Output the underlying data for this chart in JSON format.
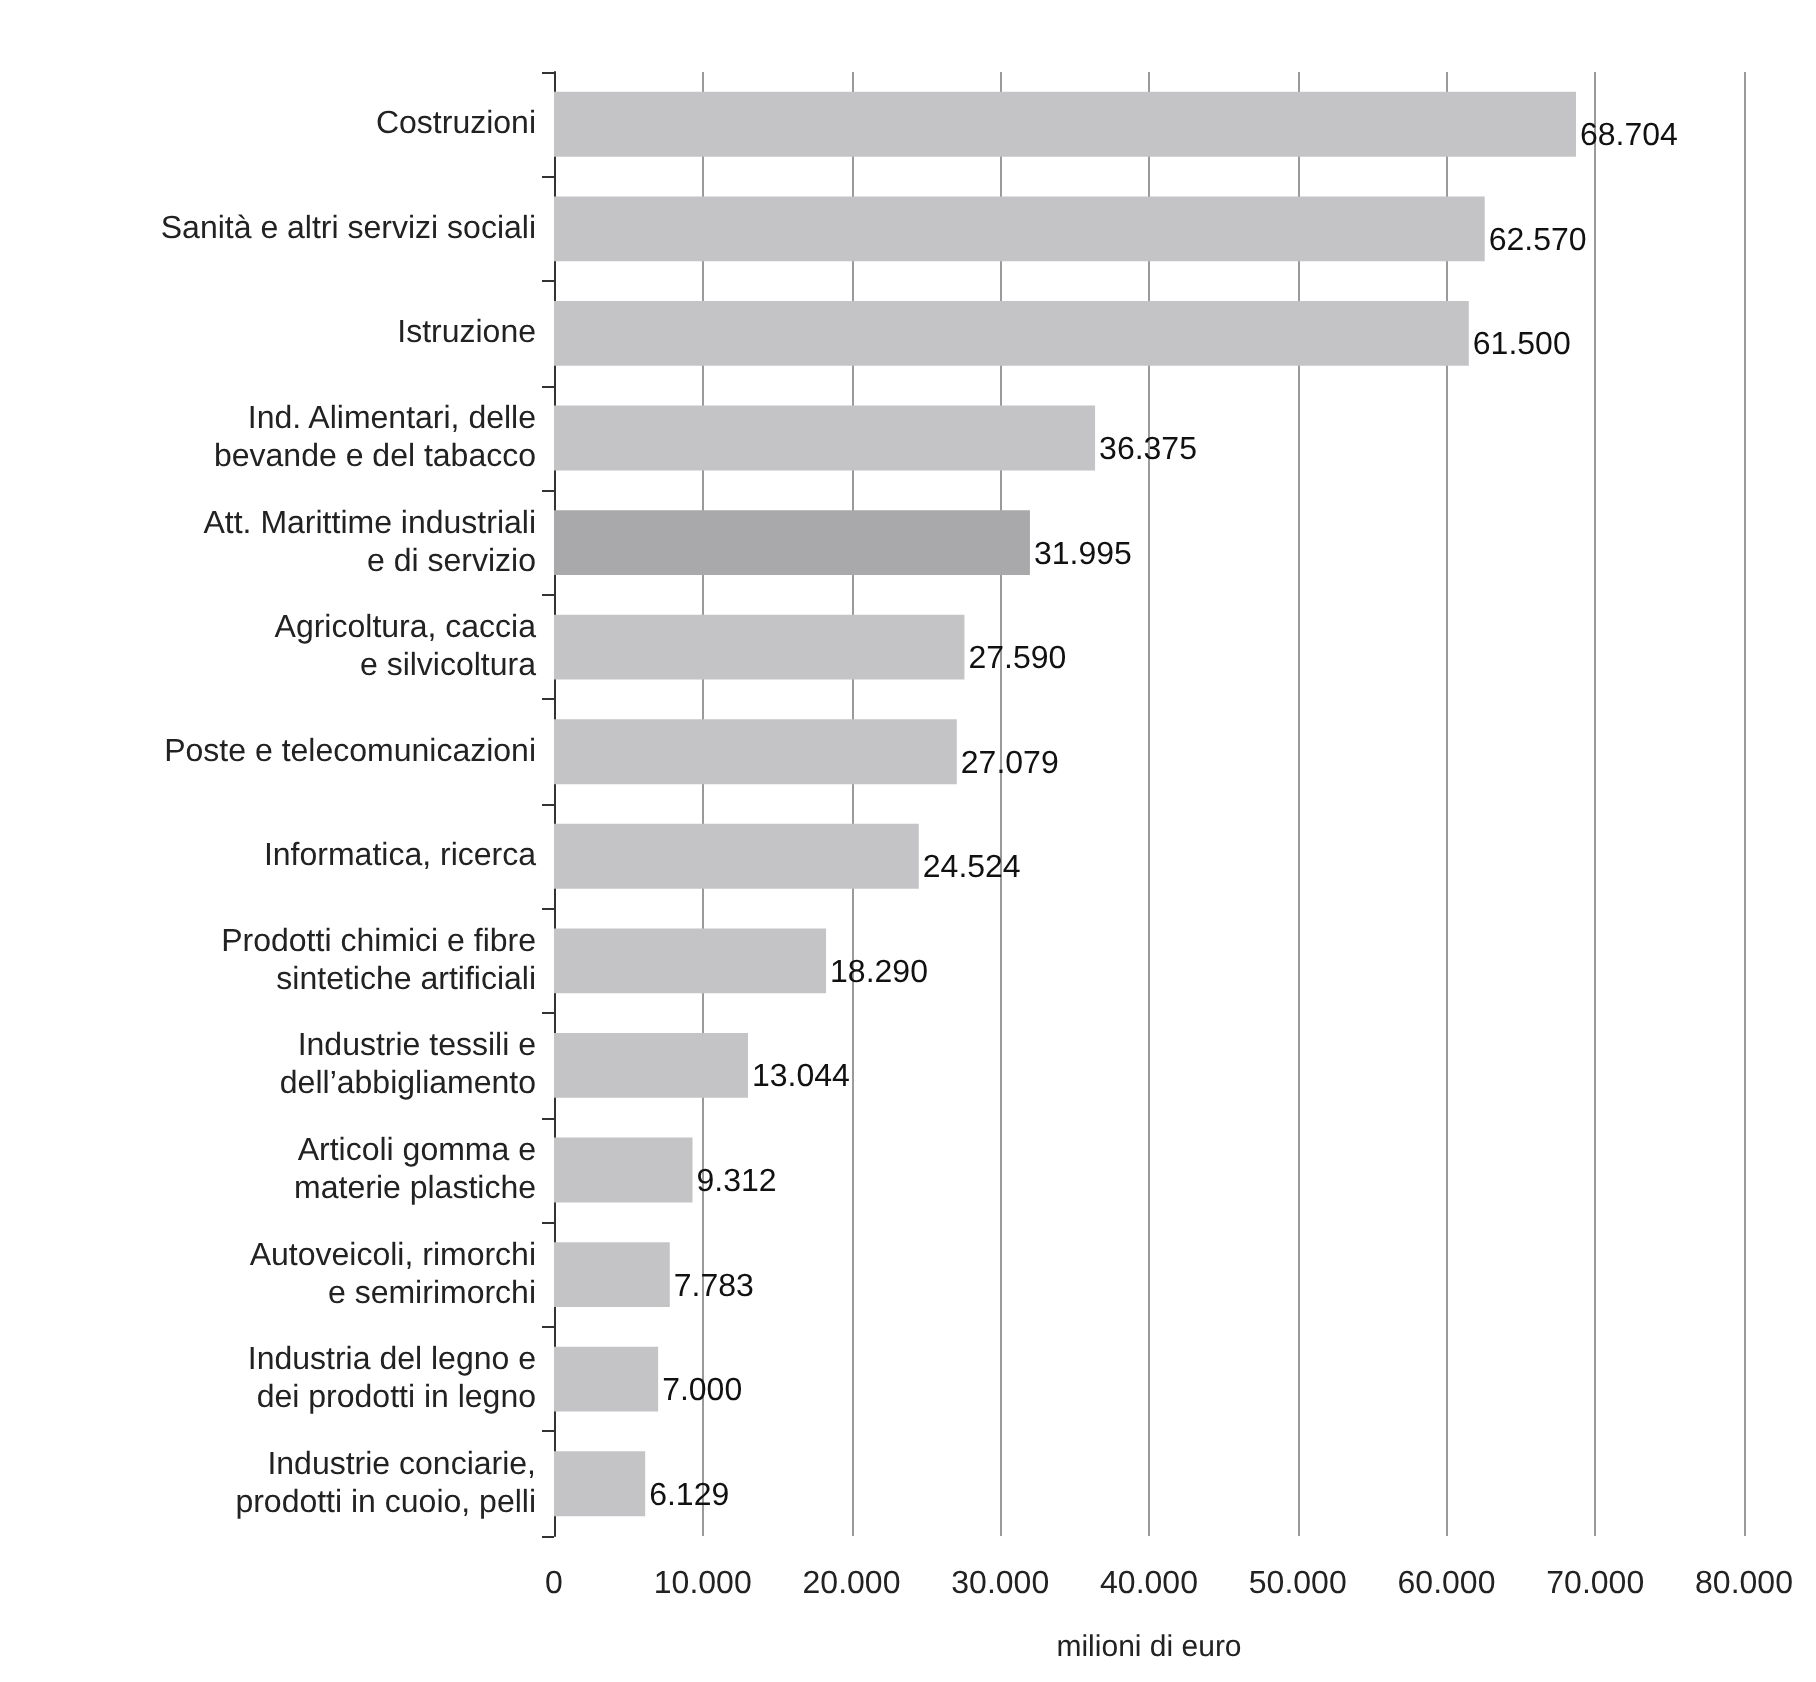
{
  "chart_data": {
    "type": "bar",
    "orientation": "horizontal",
    "xlabel": "milioni di euro",
    "categories": [
      "Costruzioni",
      "Sanità e altri servizi sociali",
      "Istruzione",
      "Ind. Alimentari, delle\nbevande e del tabacco",
      "Att. Marittime industriali\ne di servizio",
      "Agricoltura, caccia\ne silvicoltura",
      "Poste e telecomunicazioni",
      "Informatica, ricerca",
      "Prodotti chimici e fibre\nsintetiche artificiali",
      "Industrie tessili e\ndell’abbigliamento",
      "Articoli gomma e\nmaterie plastiche",
      "Autoveicoli, rimorchi\ne semirimorchi",
      "Industria del legno e\ndei prodotti in legno",
      "Industrie conciarie,\nprodotti in cuoio, pelli"
    ],
    "values": [
      68704,
      62570,
      61500,
      36375,
      31995,
      27590,
      27079,
      24524,
      18290,
      13044,
      9312,
      7783,
      7000,
      6129
    ],
    "value_labels": [
      "68.704",
      "62.570",
      "61.500",
      "36.375",
      "31.995",
      "27.590",
      "27.079",
      "24.524",
      "18.290",
      "13.044",
      "9.312",
      "7.783",
      "7.000",
      "6.129"
    ],
    "colors": [
      "#c4c4c7",
      "#c4c4c7",
      "#c4c4c7",
      "#c4c4c7",
      "#a9a9ac",
      "#c4c4c7",
      "#c4c4c7",
      "#c4c4c7",
      "#c4c4c7",
      "#c4c4c7",
      "#c4c4c7",
      "#c4c4c7",
      "#c4c4c7",
      "#c4c4c7"
    ],
    "xlim": [
      0,
      80000
    ],
    "xticks": [
      0,
      {
        "value": 10000,
        "label": "10.000"
      },
      {
        "value": 20000,
        "label": "20.000"
      },
      {
        "value": 30000,
        "label": "30.000"
      },
      {
        "value": 40000,
        "label": "40.000"
      },
      {
        "value": 50000,
        "label": "50.000"
      },
      {
        "value": 60000,
        "label": "60.000"
      },
      {
        "value": 70000,
        "label": "70.000"
      },
      {
        "value": 80000,
        "label": "80.000"
      }
    ],
    "grid": "x"
  }
}
